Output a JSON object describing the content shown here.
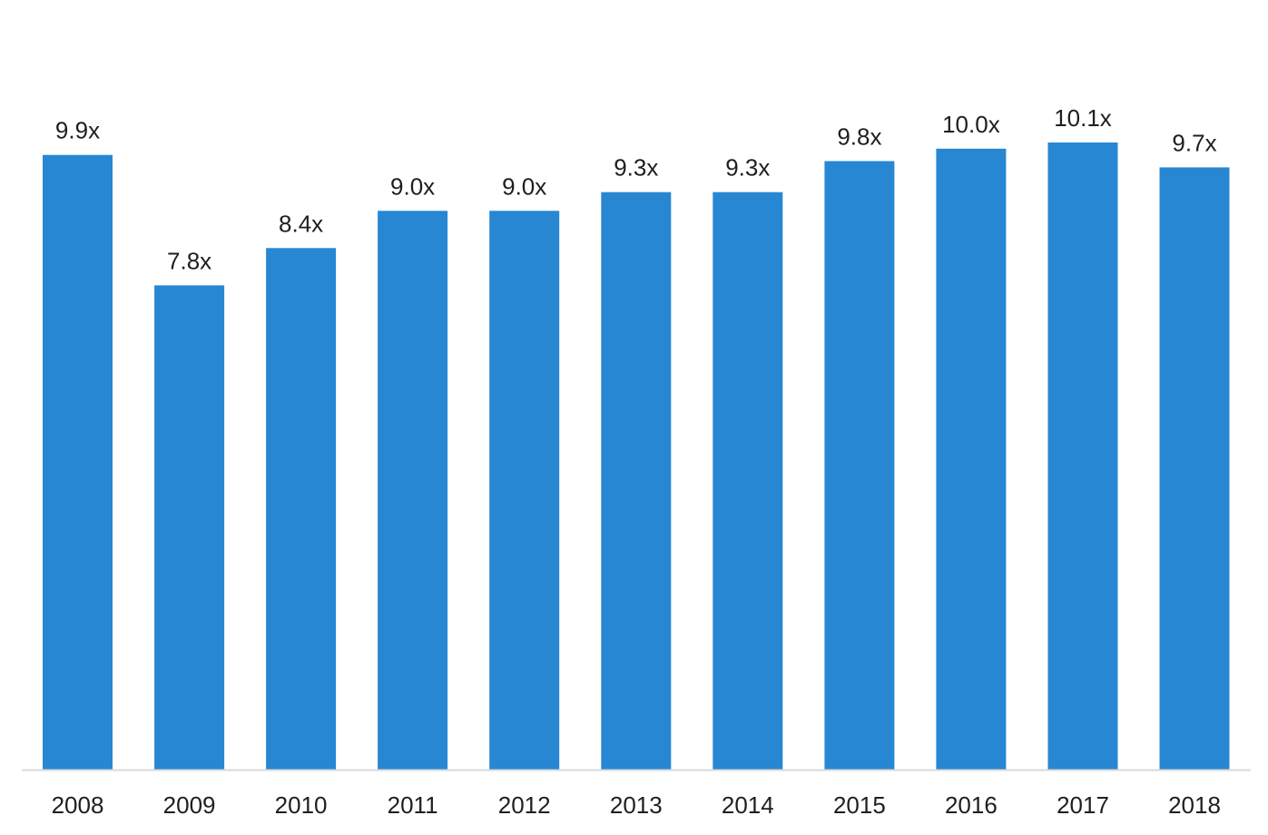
{
  "chart_data": {
    "type": "bar",
    "categories": [
      "2008",
      "2009",
      "2010",
      "2011",
      "2012",
      "2013",
      "2014",
      "2015",
      "2016",
      "2017",
      "2018"
    ],
    "values": [
      9.9,
      7.8,
      8.4,
      9.0,
      9.0,
      9.3,
      9.3,
      9.8,
      10.0,
      10.1,
      9.7
    ],
    "data_labels": [
      "9.9x",
      "7.8x",
      "8.4x",
      "9.0x",
      "9.0x",
      "9.3x",
      "9.3x",
      "9.8x",
      "10.0x",
      "10.1x",
      "9.7x"
    ],
    "title": "",
    "xlabel": "",
    "ylabel": "",
    "ylim": [
      0,
      10.1
    ],
    "grid": false,
    "legend": "none",
    "colors": {
      "bar": "#2787d3",
      "axis": "#d9d9d9",
      "text": "#1f1f1f"
    }
  }
}
